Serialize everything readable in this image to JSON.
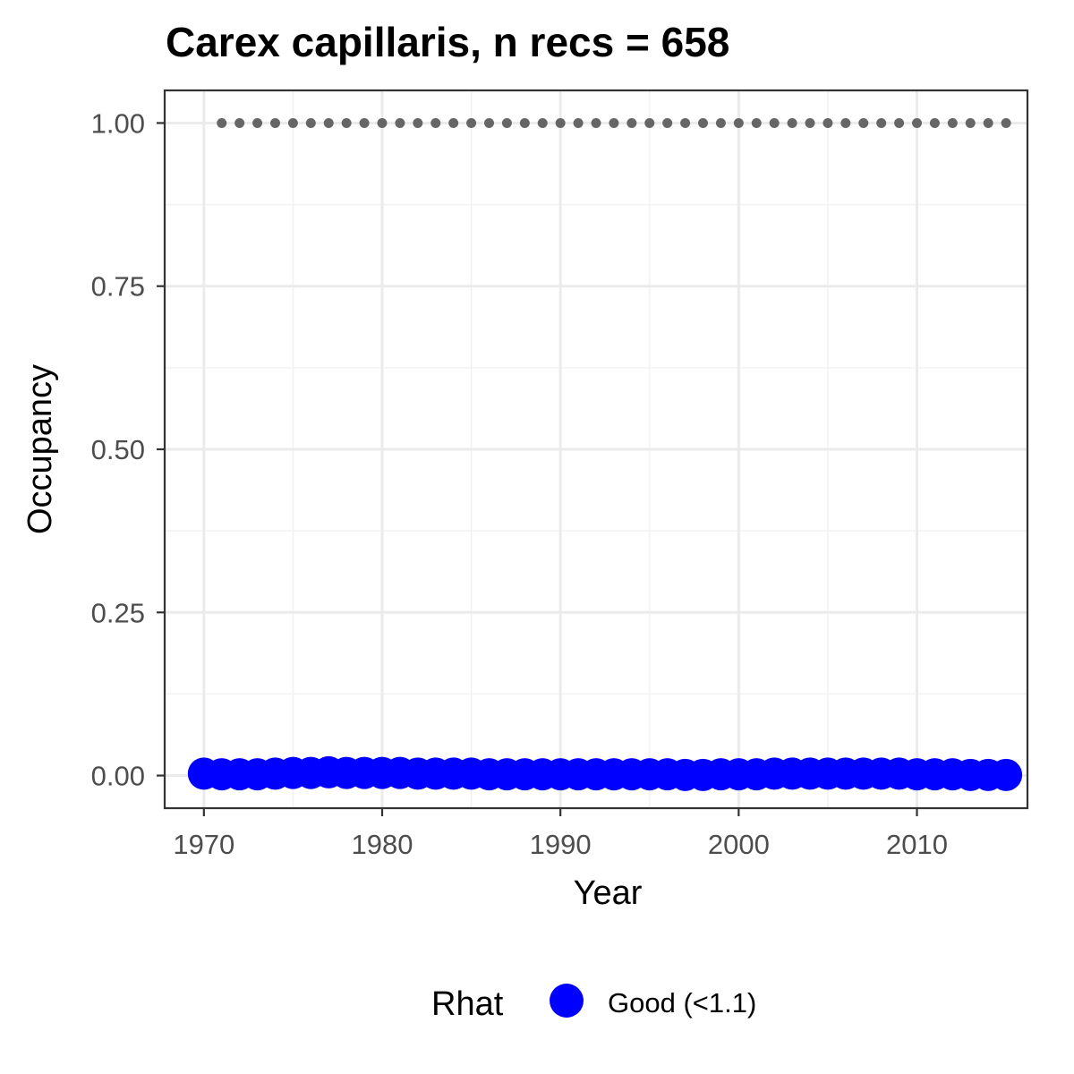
{
  "chart_data": {
    "type": "scatter",
    "title": "Carex capillaris, n recs = 658",
    "xlabel": "Year",
    "ylabel": "Occupancy",
    "xlim": [
      1967.8,
      2016.2
    ],
    "ylim": [
      -0.05,
      1.05
    ],
    "x_ticks": [
      1970,
      1980,
      1990,
      2000,
      2010
    ],
    "x_tick_labels": [
      "1970",
      "1980",
      "1990",
      "2000",
      "2010"
    ],
    "y_ticks": [
      0,
      0.25,
      0.5,
      0.75,
      1.0
    ],
    "y_tick_labels": [
      "0.00",
      "0.25",
      "0.50",
      "0.75",
      "1.00"
    ],
    "grid": true,
    "legend_position": "bottom",
    "legend": {
      "title": "Rhat",
      "entries": [
        {
          "label": "Good (<1.1)",
          "color": "#0000ff"
        }
      ]
    },
    "series": [
      {
        "name": "Good (<1.1)",
        "color": "#0000ff",
        "marker": "circle",
        "x": [
          1970,
          1971,
          1972,
          1973,
          1974,
          1975,
          1976,
          1977,
          1978,
          1979,
          1980,
          1981,
          1982,
          1983,
          1984,
          1985,
          1986,
          1987,
          1988,
          1989,
          1990,
          1991,
          1992,
          1993,
          1994,
          1995,
          1996,
          1997,
          1998,
          1999,
          2000,
          2001,
          2002,
          2003,
          2004,
          2005,
          2006,
          2007,
          2008,
          2009,
          2010,
          2011,
          2012,
          2013,
          2014,
          2015
        ],
        "y": [
          0.003,
          0.002,
          0.002,
          0.002,
          0.003,
          0.004,
          0.004,
          0.005,
          0.004,
          0.004,
          0.004,
          0.004,
          0.003,
          0.003,
          0.003,
          0.003,
          0.002,
          0.002,
          0.002,
          0.002,
          0.002,
          0.002,
          0.002,
          0.002,
          0.002,
          0.002,
          0.002,
          0.001,
          0.001,
          0.002,
          0.002,
          0.002,
          0.003,
          0.003,
          0.003,
          0.003,
          0.003,
          0.003,
          0.003,
          0.003,
          0.002,
          0.002,
          0.002,
          0.001,
          0.001,
          0.001
        ]
      },
      {
        "color": "#666666",
        "marker": "small-dot",
        "x": [
          1971,
          1972,
          1973,
          1974,
          1975,
          1976,
          1977,
          1978,
          1979,
          1980,
          1981,
          1982,
          1983,
          1984,
          1985,
          1986,
          1987,
          1988,
          1989,
          1990,
          1991,
          1992,
          1993,
          1994,
          1995,
          1996,
          1997,
          1998,
          1999,
          2000,
          2001,
          2002,
          2003,
          2004,
          2005,
          2006,
          2007,
          2008,
          2009,
          2010,
          2011,
          2012,
          2013,
          2014,
          2015
        ],
        "y": [
          1,
          1,
          1,
          1,
          1,
          1,
          1,
          1,
          1,
          1,
          1,
          1,
          1,
          1,
          1,
          1,
          1,
          1,
          1,
          1,
          1,
          1,
          1,
          1,
          1,
          1,
          1,
          1,
          1,
          1,
          1,
          1,
          1,
          1,
          1,
          1,
          1,
          1,
          1,
          1,
          1,
          1,
          1,
          1,
          1
        ]
      }
    ]
  }
}
